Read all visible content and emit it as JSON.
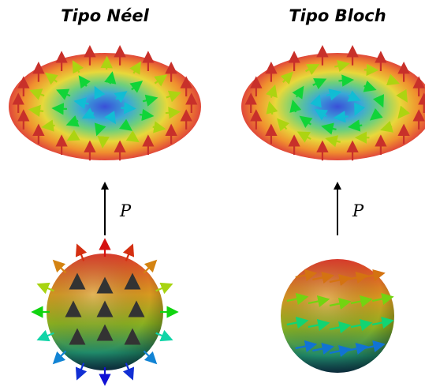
{
  "panels": [
    {
      "title": "Tipo Néel",
      "label": "P"
    },
    {
      "title": "Tipo Bloch",
      "label": "P"
    }
  ]
}
